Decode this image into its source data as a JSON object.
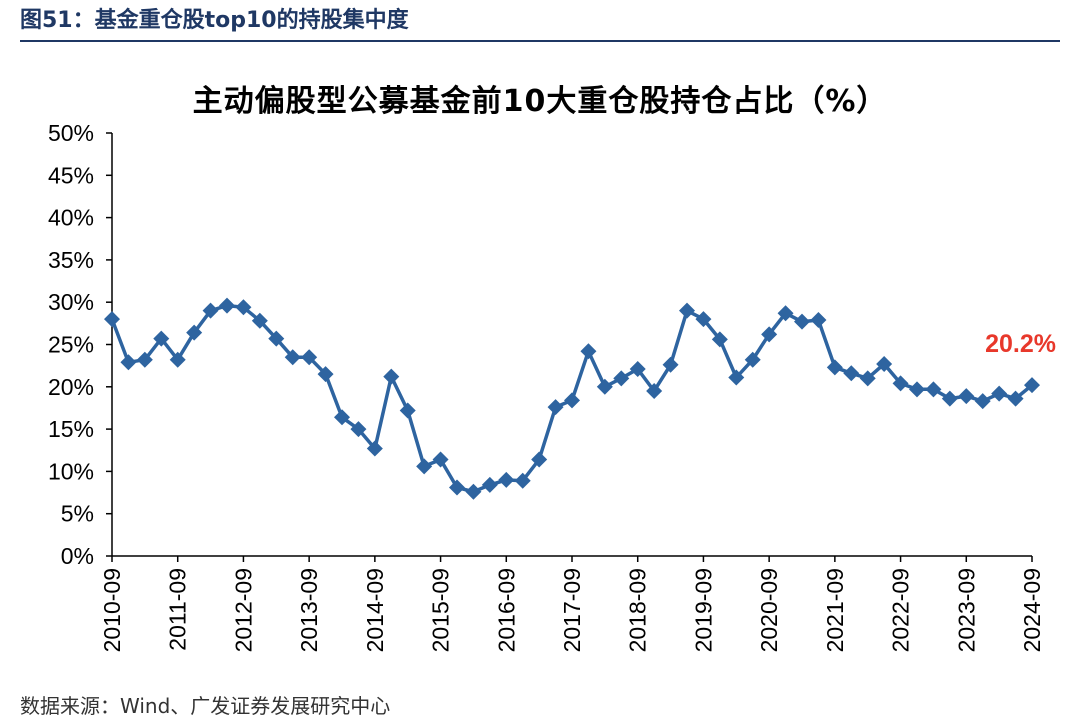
{
  "header": {
    "figure_label": "图51：基金重仓股top10的持股集中度"
  },
  "source": "数据来源：Wind、广发证券发展研究中心",
  "colors": {
    "series": "#2e64a0",
    "annotation": "#e8382b",
    "header_rule": "#1f3864"
  },
  "chart_data": {
    "type": "line",
    "title": "主动偏股型公募基金前10大重仓股持仓占比（%）",
    "xlabel": "",
    "ylabel": "",
    "ylim": [
      0,
      50
    ],
    "y_ticks": [
      "0%",
      "5%",
      "10%",
      "15%",
      "20%",
      "25%",
      "30%",
      "35%",
      "40%",
      "45%",
      "50%"
    ],
    "x_tick_labels": [
      "2010-09",
      "2011-09",
      "2012-09",
      "2013-09",
      "2014-09",
      "2015-09",
      "2016-09",
      "2017-09",
      "2018-09",
      "2019-09",
      "2020-09",
      "2021-09",
      "2022-09",
      "2023-09",
      "2024-09"
    ],
    "grid": false,
    "legend": "none",
    "marker": "diamond",
    "x": [
      "2010-09",
      "2010-12",
      "2011-03",
      "2011-06",
      "2011-09",
      "2011-12",
      "2012-03",
      "2012-06",
      "2012-09",
      "2012-12",
      "2013-03",
      "2013-06",
      "2013-09",
      "2013-12",
      "2014-03",
      "2014-06",
      "2014-09",
      "2014-12",
      "2015-03",
      "2015-06",
      "2015-09",
      "2015-12",
      "2016-03",
      "2016-06",
      "2016-09",
      "2016-12",
      "2017-03",
      "2017-06",
      "2017-09",
      "2017-12",
      "2018-03",
      "2018-06",
      "2018-09",
      "2018-12",
      "2019-03",
      "2019-06",
      "2019-09",
      "2019-12",
      "2020-03",
      "2020-06",
      "2020-09",
      "2020-12",
      "2021-03",
      "2021-06",
      "2021-09",
      "2021-12",
      "2022-03",
      "2022-06",
      "2022-09",
      "2022-12",
      "2023-03",
      "2023-06",
      "2023-09",
      "2023-12",
      "2024-03",
      "2024-06",
      "2024-09"
    ],
    "series": [
      {
        "values": [
          28.0,
          22.9,
          23.2,
          25.7,
          23.2,
          26.4,
          29.0,
          29.6,
          29.4,
          27.8,
          25.7,
          23.5,
          23.5,
          21.5,
          16.4,
          15.0,
          12.7,
          21.2,
          17.2,
          10.6,
          11.4,
          8.1,
          7.6,
          8.4,
          9.0,
          8.9,
          11.4,
          17.6,
          18.4,
          24.2,
          20.0,
          21.0,
          22.1,
          19.5,
          22.6,
          29.0,
          28.0,
          25.6,
          21.1,
          23.2,
          26.2,
          28.7,
          27.7,
          27.9,
          22.3,
          21.6,
          21.0,
          22.7,
          20.4,
          19.7,
          19.7,
          18.6,
          18.9,
          18.3,
          19.2,
          18.6,
          20.2
        ]
      }
    ],
    "annotations": [
      {
        "x": "2024-09",
        "text": "20.2%"
      }
    ]
  }
}
